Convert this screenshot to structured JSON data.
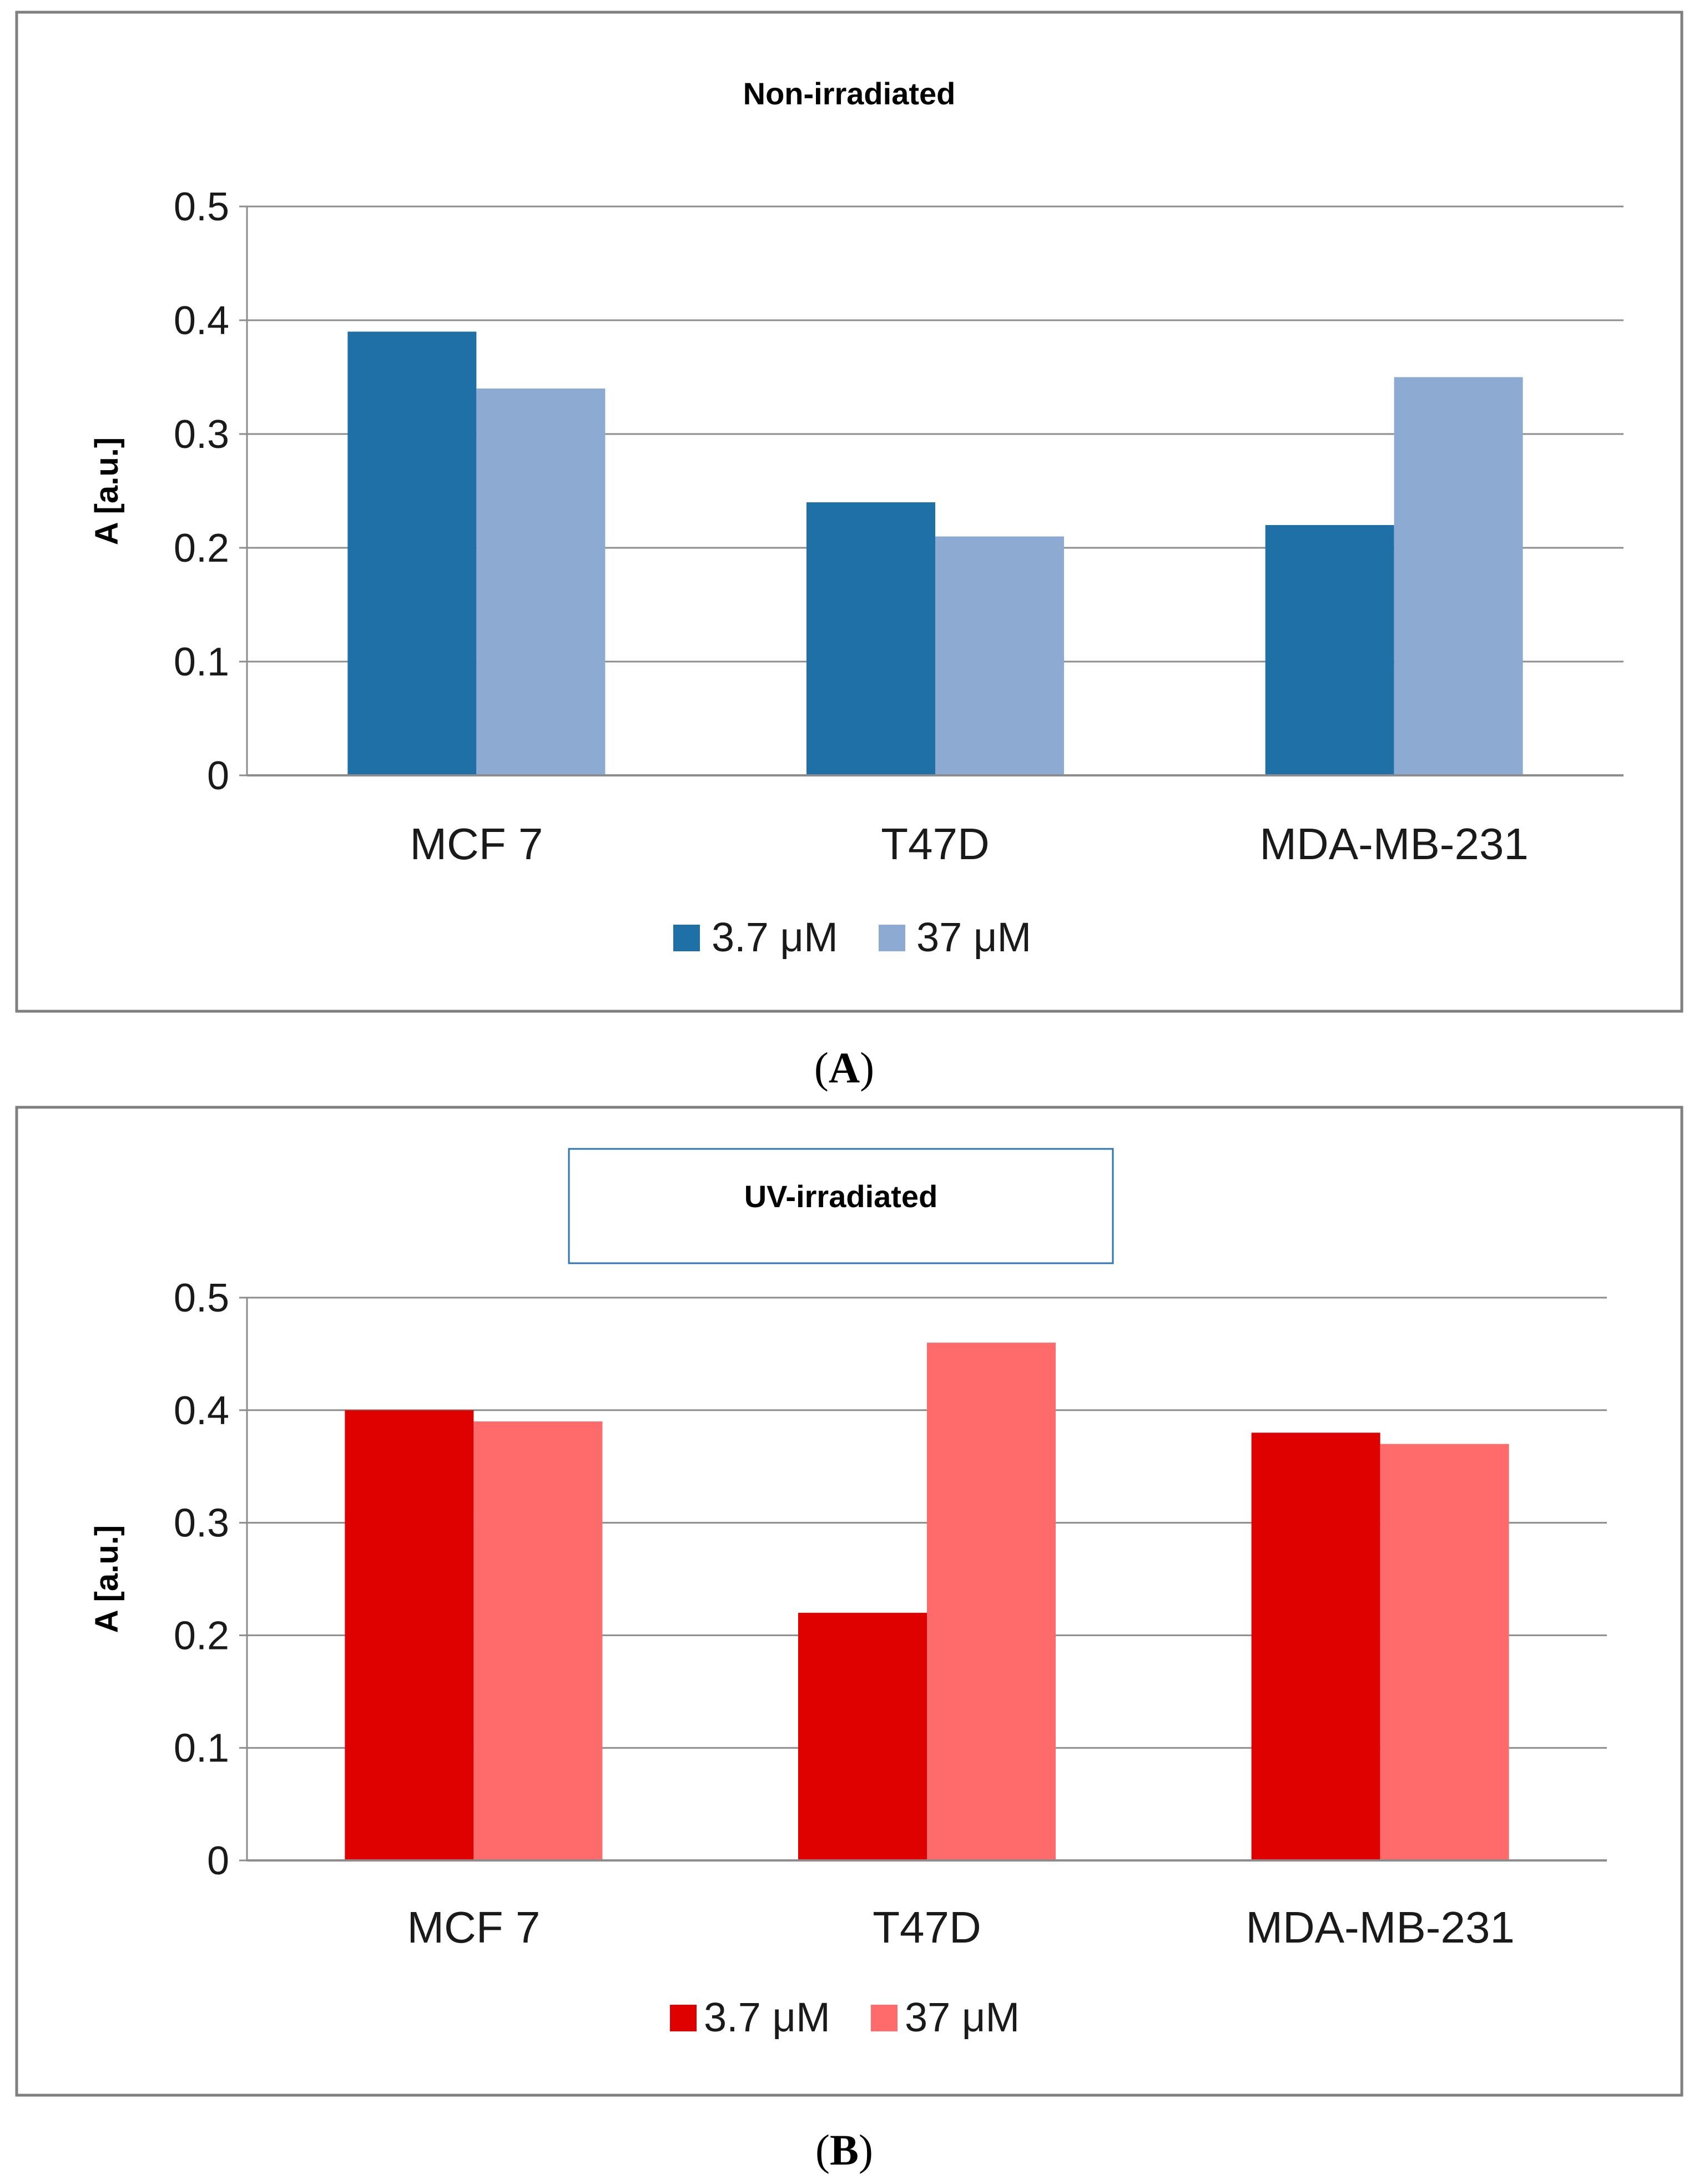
{
  "figure": {
    "panels": [
      {
        "caption": "A",
        "legend_layout": "spread",
        "title_boxed": false
      },
      {
        "caption": "B",
        "legend_layout": "compact",
        "title_boxed": true
      }
    ]
  },
  "chart_data": [
    {
      "type": "bar",
      "title": "Non-irradiated",
      "xlabel": "",
      "ylabel": "A [a.u.]",
      "ylim": [
        0,
        0.5
      ],
      "yticks": [
        "0",
        "0.1",
        "0.2",
        "0.3",
        "0.4",
        "0.5"
      ],
      "grid": true,
      "legend_position": "bottom",
      "categories": [
        "MCF 7",
        "T47D",
        "MDA-MB-231"
      ],
      "series": [
        {
          "name": "3.7 μM",
          "color": "#1f70a7",
          "values": [
            0.39,
            0.24,
            0.22
          ]
        },
        {
          "name": "37 μM",
          "color": "#8dabd2",
          "values": [
            0.34,
            0.21,
            0.35
          ]
        }
      ]
    },
    {
      "type": "bar",
      "title": "UV-irradiated",
      "xlabel": "",
      "ylabel": "A [a.u.]",
      "ylim": [
        0,
        0.5
      ],
      "yticks": [
        "0",
        "0.1",
        "0.2",
        "0.3",
        "0.4",
        "0.5"
      ],
      "grid": true,
      "legend_position": "bottom",
      "categories": [
        "MCF 7",
        "T47D",
        "MDA-MB-231"
      ],
      "series": [
        {
          "name": "3.7 μM",
          "color": "#df0000",
          "values": [
            0.4,
            0.22,
            0.38
          ]
        },
        {
          "name": "37 μM",
          "color": "#ff6a6a",
          "values": [
            0.39,
            0.46,
            0.37
          ]
        }
      ]
    }
  ]
}
